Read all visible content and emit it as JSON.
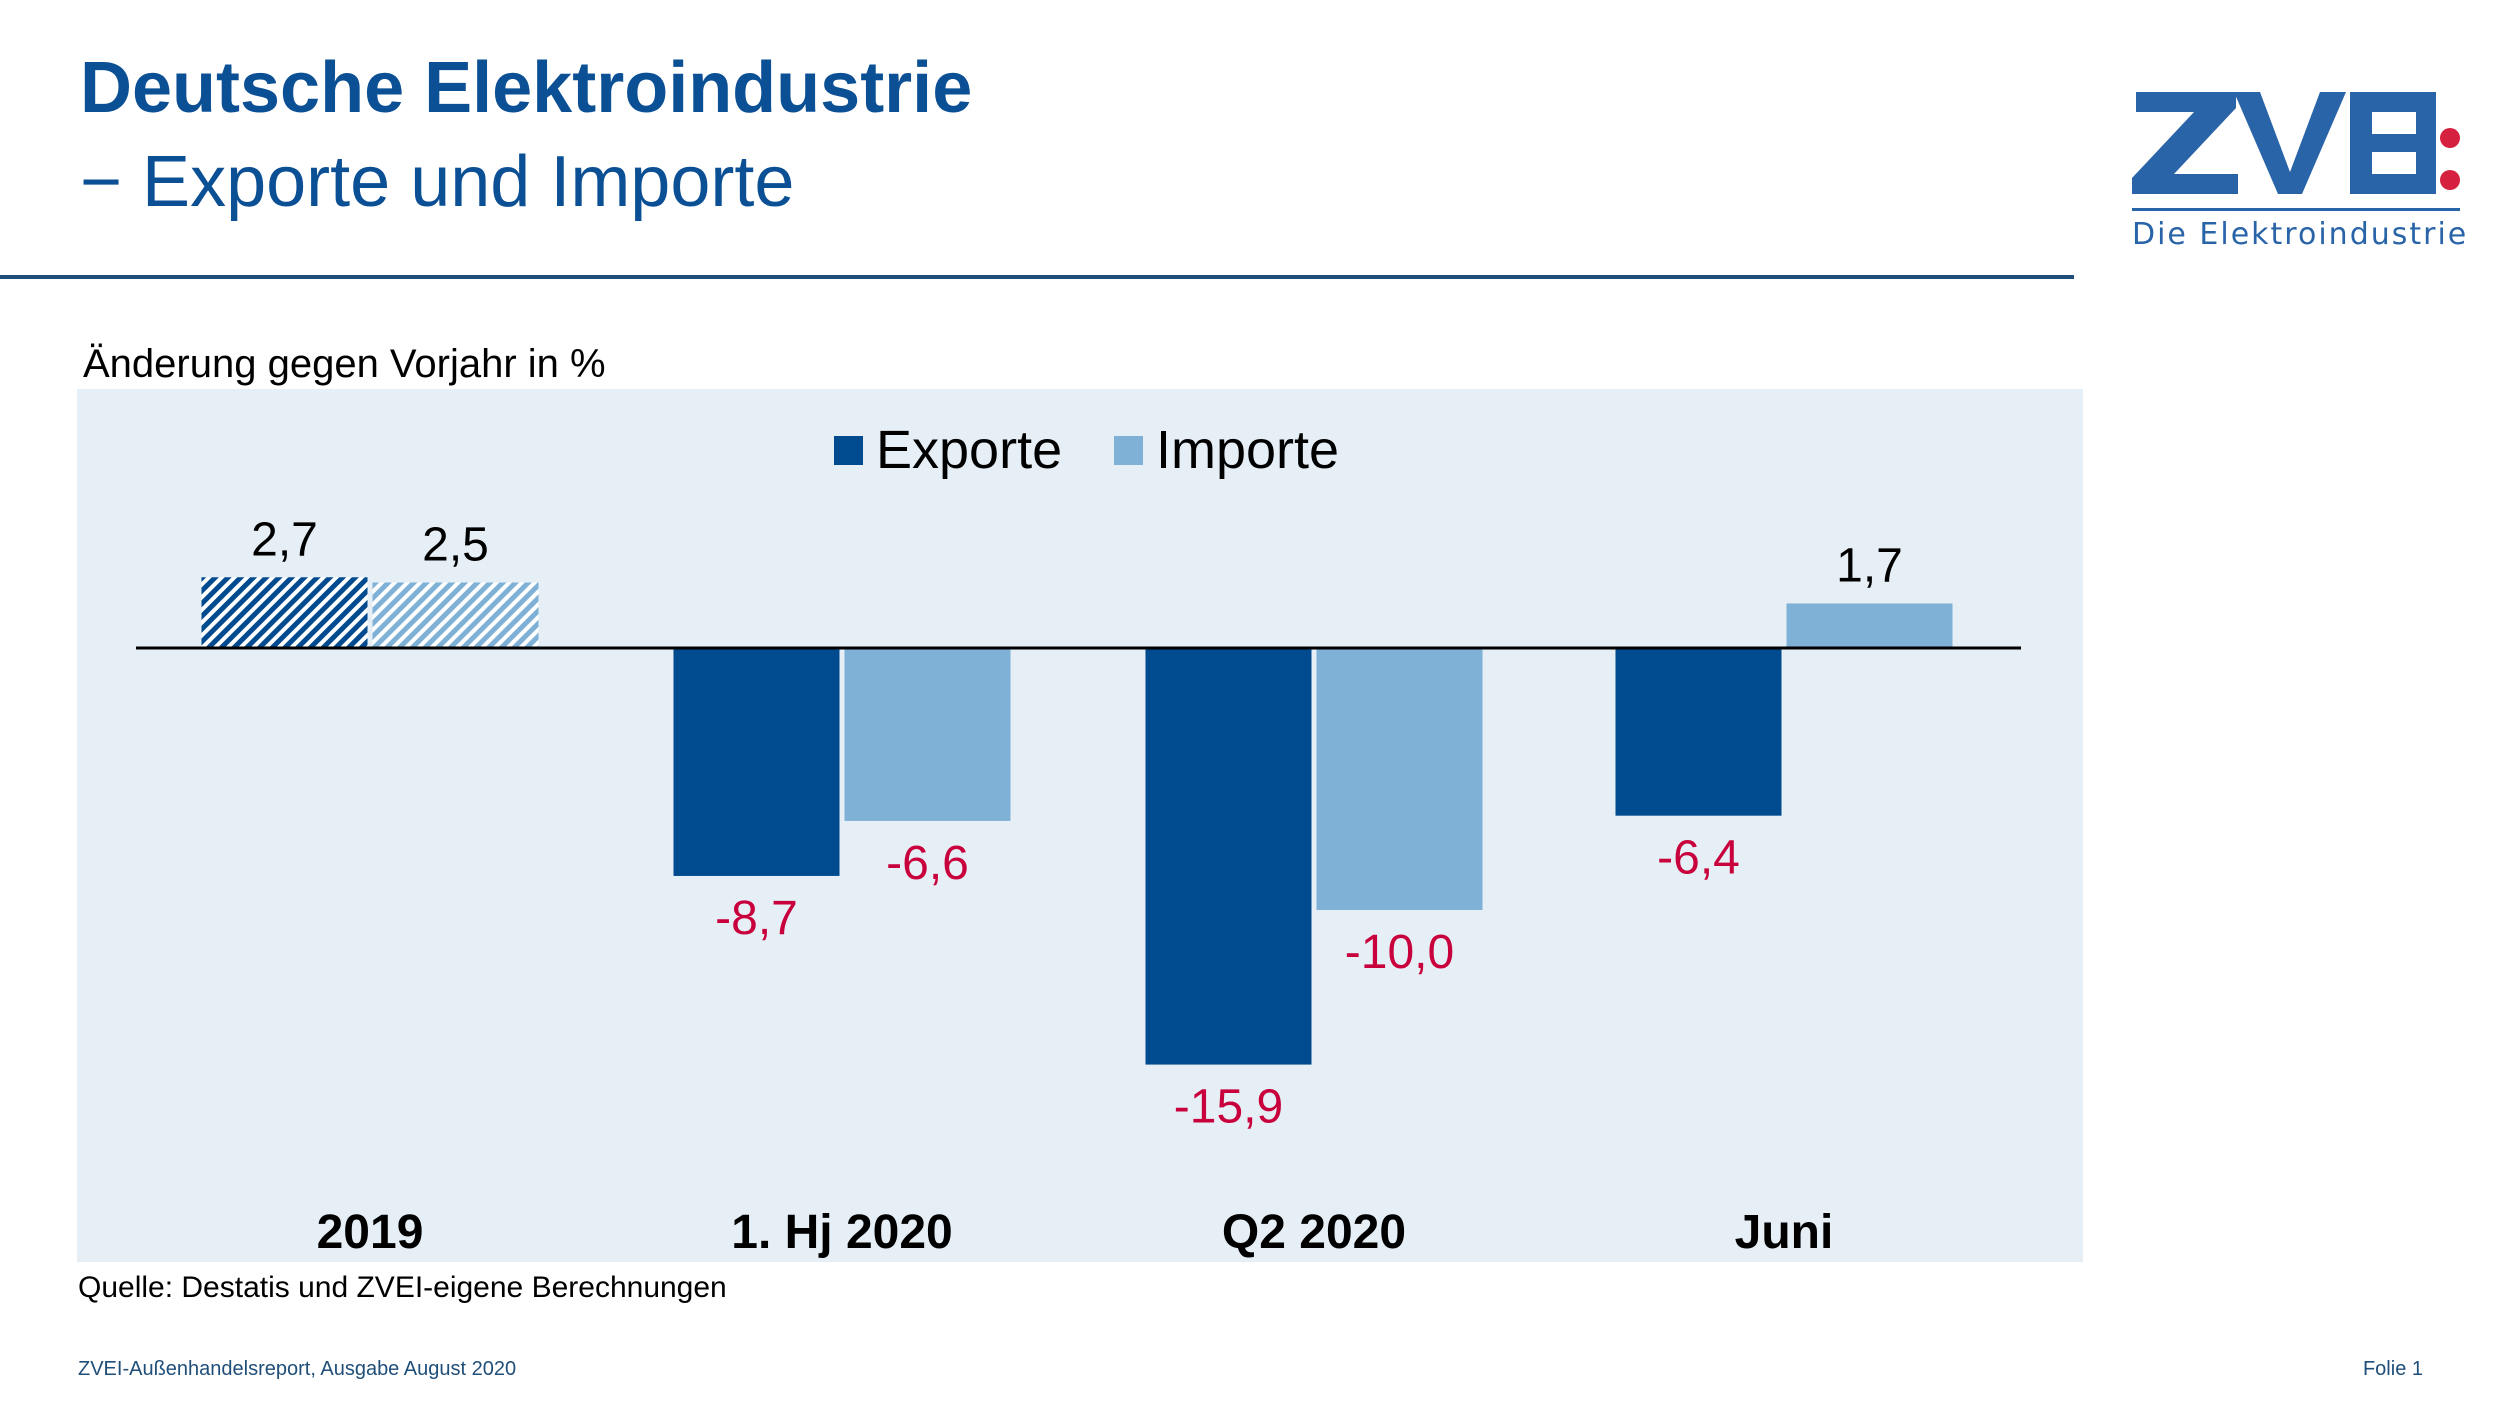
{
  "header": {
    "title": "Deutsche Elektroindustrie",
    "subtitle": "− Exporte und Importe"
  },
  "logo": {
    "text": "ZVEI",
    "tagline": "Die Elektroindustrie",
    "colors": {
      "blue": "#2a64a8",
      "red": "#d6203f"
    }
  },
  "footer": {
    "source": "Quelle: Destatis und ZVEI-eigene Berechnungen",
    "publication": "ZVEI-Außenhandelsreport, Ausgabe August 2020",
    "slide": "Folie 1"
  },
  "chart_data": {
    "type": "bar",
    "title": "",
    "ylabel": "Änderung gegen Vorjahr in %",
    "categories": [
      "2019",
      "1. Hj 2020",
      "Q2 2020",
      "Juni"
    ],
    "series": [
      {
        "name": "Exporte",
        "values": [
          2.7,
          -8.7,
          -15.9,
          -6.4
        ],
        "labels": [
          "2,7",
          "-8,7",
          "-15,9",
          "-6,4"
        ],
        "color": "#004a8f"
      },
      {
        "name": "Importe",
        "values": [
          2.5,
          -6.6,
          -10.0,
          1.7
        ],
        "labels": [
          "2,5",
          "-6,6",
          "-10,0",
          "1,7"
        ],
        "color": "#7fb1d6"
      }
    ],
    "hatched_categories": [
      "2019"
    ],
    "negative_label_color": "#c8003c",
    "positive_label_color": "#000000",
    "legend": "top-center",
    "grid": false,
    "background": "#e6eff6"
  }
}
